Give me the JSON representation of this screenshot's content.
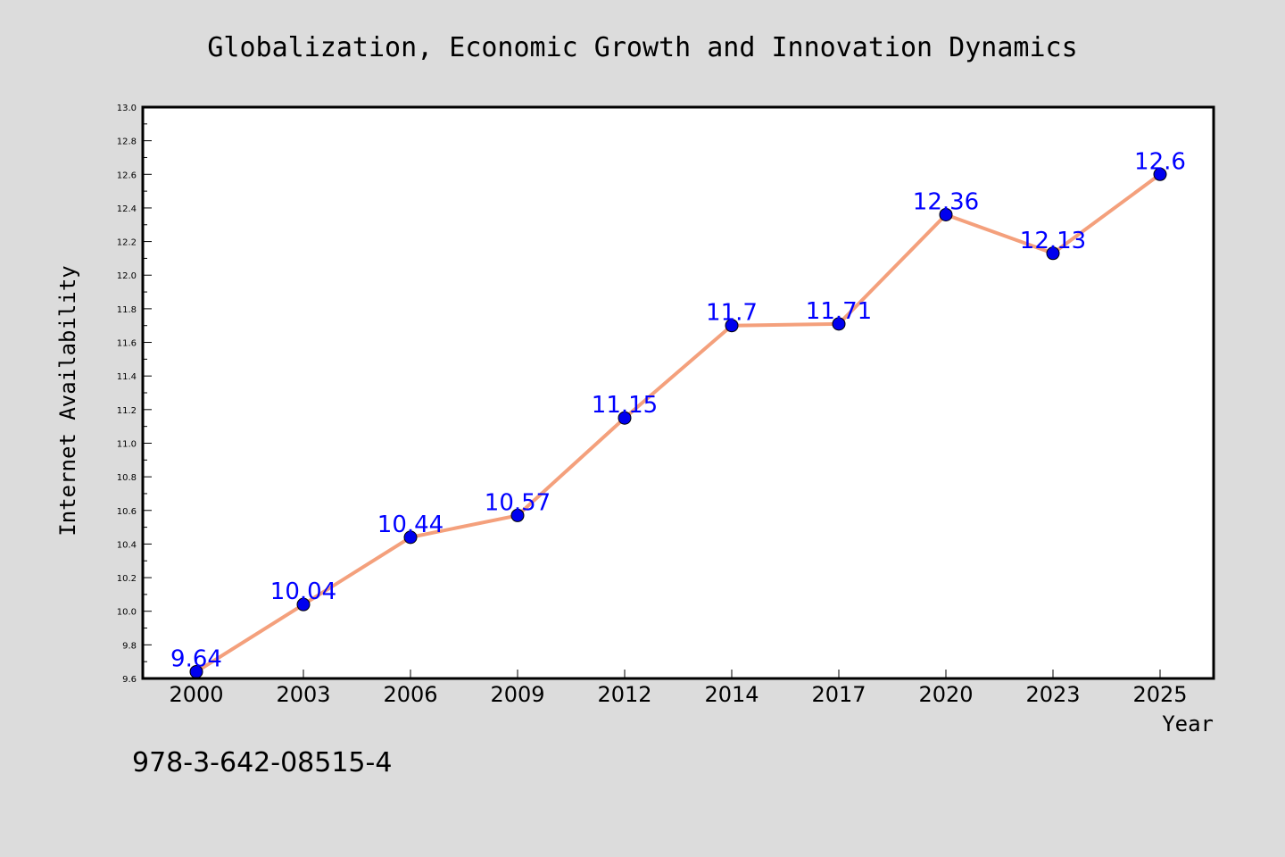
{
  "chart_data": {
    "type": "line",
    "title": "Globalization, Economic Growth and Innovation Dynamics",
    "xlabel": "Year",
    "ylabel": "Internet Availability",
    "categories": [
      "2000",
      "2003",
      "2006",
      "2009",
      "2012",
      "2014",
      "2017",
      "2020",
      "2023",
      "2025"
    ],
    "series": [
      {
        "values": [
          9.64,
          10.04,
          10.44,
          10.57,
          11.15,
          11.7,
          11.71,
          12.36,
          12.13,
          12.6
        ],
        "labels": [
          "9.64",
          "10.04",
          "10.44",
          "10.57",
          "11.15",
          "11.7",
          "11.71",
          "12.36",
          "12.13",
          "12.6"
        ]
      }
    ],
    "ylim": [
      9.6,
      13.0
    ],
    "yticks": [
      "9.6",
      "9.8",
      "10.0",
      "10.2",
      "10.4",
      "10.6",
      "10.8",
      "11.0",
      "11.2",
      "11.4",
      "11.6",
      "11.8",
      "12.0",
      "12.2",
      "12.4",
      "12.6",
      "12.8",
      "13.0"
    ],
    "grid": false,
    "legend": "none",
    "line_color": "#f4a07c",
    "marker_color": "#0000ee",
    "label_color": "#0000ff"
  },
  "footnote": "978-3-642-08515-4",
  "colors": {
    "background": "#dcdcdc",
    "plot_background": "#ffffff",
    "axis": "#000000"
  }
}
